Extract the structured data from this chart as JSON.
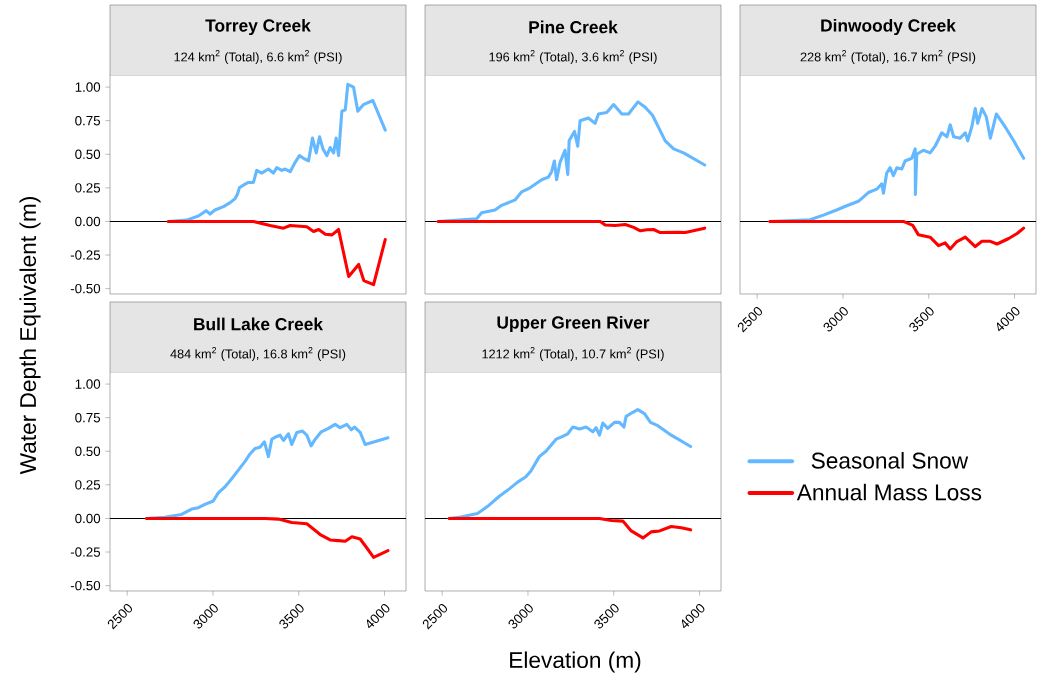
{
  "chart_data": [
    {
      "type": "line",
      "title": "Torrey Creek",
      "subtitle": "124 km$^{2}$ (Total), 6.6 km$^{2}$ (PSI)",
      "ylabel": "Water Depth Equivalent (m)",
      "xlim": [
        2400,
        4125
      ],
      "ylim": [
        -0.54,
        1.09
      ],
      "tick_labels": "y",
      "yticks": [
        {
          "value": -0.5,
          "label": "-0.50"
        },
        {
          "value": -0.25,
          "label": "-0.25"
        },
        {
          "value": 0,
          "label": "0.00"
        },
        {
          "value": 0.25,
          "label": "0.25"
        },
        {
          "value": 0.5,
          "label": "0.50"
        },
        {
          "value": 0.75,
          "label": "0.75"
        },
        {
          "value": 1,
          "label": "1.00"
        }
      ],
      "ref_lines": [
        {
          "axis": "y",
          "value": 0,
          "color": "#000000"
        }
      ],
      "series": [
        {
          "color": "#63b8ff",
          "x": [
            2740,
            2847,
            2915,
            2960,
            2983,
            3012,
            3061,
            3100,
            3129,
            3142,
            3154,
            3177,
            3206,
            3236,
            3255,
            3284,
            3323,
            3352,
            3372,
            3401,
            3420,
            3450,
            3479,
            3504,
            3528,
            3557,
            3580,
            3602,
            3621,
            3641,
            3664,
            3683,
            3703,
            3718,
            3732,
            3751,
            3771,
            3786,
            3819,
            3844,
            3877,
            3932,
            4004
          ],
          "values": [
            0.0,
            0.01,
            0.04,
            0.08,
            0.055,
            0.085,
            0.11,
            0.14,
            0.17,
            0.2,
            0.25,
            0.27,
            0.29,
            0.29,
            0.38,
            0.36,
            0.39,
            0.36,
            0.4,
            0.38,
            0.39,
            0.37,
            0.44,
            0.49,
            0.47,
            0.45,
            0.62,
            0.51,
            0.63,
            0.54,
            0.49,
            0.55,
            0.51,
            0.62,
            0.49,
            0.82,
            0.83,
            1.02,
            1.0,
            0.82,
            0.87,
            0.9,
            0.68
          ]
        },
        {
          "color": "#ff0000",
          "x": [
            2740,
            3236,
            3333,
            3411,
            3450,
            3547,
            3586,
            3616,
            3655,
            3694,
            3732,
            3791,
            3849,
            3879,
            3936,
            4004
          ],
          "values": [
            0,
            0,
            -0.03,
            -0.05,
            -0.03,
            -0.04,
            -0.075,
            -0.06,
            -0.095,
            -0.1,
            -0.06,
            -0.41,
            -0.32,
            -0.44,
            -0.47,
            -0.135
          ]
        }
      ]
    },
    {
      "type": "line",
      "title": "Pine Creek",
      "subtitle": "196 km$^{2}$ (Total), 3.6 km$^{2}$ (PSI)",
      "xlim": [
        2400,
        4125
      ],
      "ylim": [
        -0.54,
        1.09
      ],
      "tick_labels": false,
      "ref_lines": [
        {
          "axis": "y",
          "value": 0,
          "color": "#000000"
        }
      ],
      "series": [
        {
          "color": "#63b8ff",
          "x": [
            2477,
            2701,
            2730,
            2808,
            2847,
            2925,
            2963,
            3012,
            3080,
            3119,
            3138,
            3154,
            3167,
            3187,
            3216,
            3232,
            3240,
            3271,
            3290,
            3304,
            3352,
            3391,
            3411,
            3459,
            3499,
            3547,
            3586,
            3641,
            3683,
            3726,
            3800,
            3849,
            3907,
            4030
          ],
          "values": [
            0,
            0.02,
            0.065,
            0.085,
            0.12,
            0.16,
            0.22,
            0.25,
            0.31,
            0.33,
            0.37,
            0.45,
            0.31,
            0.44,
            0.53,
            0.35,
            0.6,
            0.67,
            0.56,
            0.75,
            0.77,
            0.73,
            0.8,
            0.81,
            0.87,
            0.8,
            0.8,
            0.89,
            0.85,
            0.79,
            0.6,
            0.54,
            0.51,
            0.42
          ]
        },
        {
          "color": "#ff0000",
          "x": [
            2477,
            3421,
            3450,
            3508,
            3567,
            3616,
            3655,
            3694,
            3732,
            3771,
            3878,
            3917,
            4030
          ],
          "values": [
            0,
            0,
            -0.026,
            -0.03,
            -0.023,
            -0.044,
            -0.07,
            -0.062,
            -0.06,
            -0.083,
            -0.08,
            -0.083,
            -0.05
          ]
        }
      ]
    },
    {
      "type": "line",
      "title": "Dinwoody Creek",
      "subtitle": "228 km$^{2}$ (Total), 16.7 km$^{2}$ (PSI)",
      "xlim": [
        2400,
        4125
      ],
      "ylim": [
        -0.54,
        1.09
      ],
      "tick_labels": "x",
      "xticks": [
        2500,
        3000,
        3500,
        4000
      ],
      "ref_lines": [
        {
          "axis": "y",
          "value": 0,
          "color": "#000000"
        }
      ],
      "series": [
        {
          "color": "#63b8ff",
          "x": [
            2574,
            2808,
            2886,
            2963,
            3022,
            3090,
            3148,
            3197,
            3226,
            3236,
            3255,
            3275,
            3294,
            3314,
            3343,
            3362,
            3401,
            3421,
            3422,
            3430,
            3469,
            3508,
            3537,
            3576,
            3606,
            3625,
            3645,
            3683,
            3713,
            3727,
            3752,
            3771,
            3785,
            3810,
            3835,
            3859,
            3894,
            3952,
            3995,
            4053
          ],
          "values": [
            0,
            0.013,
            0.047,
            0.085,
            0.117,
            0.15,
            0.215,
            0.24,
            0.28,
            0.21,
            0.36,
            0.4,
            0.34,
            0.4,
            0.39,
            0.45,
            0.47,
            0.54,
            0.2,
            0.5,
            0.53,
            0.51,
            0.56,
            0.66,
            0.63,
            0.72,
            0.63,
            0.62,
            0.66,
            0.6,
            0.71,
            0.84,
            0.73,
            0.84,
            0.78,
            0.62,
            0.8,
            0.69,
            0.6,
            0.47
          ]
        },
        {
          "color": "#ff0000",
          "x": [
            2574,
            3352,
            3407,
            3440,
            3508,
            3557,
            3596,
            3625,
            3664,
            3713,
            3771,
            3810,
            3859,
            3898,
            3966,
            4015,
            4053
          ],
          "values": [
            0,
            0,
            -0.03,
            -0.1,
            -0.117,
            -0.18,
            -0.16,
            -0.205,
            -0.15,
            -0.117,
            -0.187,
            -0.148,
            -0.148,
            -0.168,
            -0.127,
            -0.09,
            -0.05
          ]
        }
      ]
    },
    {
      "type": "line",
      "title": "Bull Lake Creek",
      "subtitle": "484 km$^{2}$ (Total), 16.8 km$^{2}$ (PSI)",
      "xlim": [
        2400,
        4125
      ],
      "ylim": [
        -0.54,
        1.09
      ],
      "xticks": [
        2500,
        3000,
        3500,
        4000
      ],
      "yticks": [
        {
          "value": -0.5,
          "label": "-0.50"
        },
        {
          "value": -0.25,
          "label": "-0.25"
        },
        {
          "value": 0,
          "label": "0.00"
        },
        {
          "value": 0.25,
          "label": "0.25"
        },
        {
          "value": 0.5,
          "label": "0.50"
        },
        {
          "value": 0.75,
          "label": "0.75"
        },
        {
          "value": 1,
          "label": "1.00"
        }
      ],
      "ref_lines": [
        {
          "axis": "y",
          "value": 0,
          "color": "#000000"
        }
      ],
      "series": [
        {
          "color": "#63b8ff",
          "x": [
            2613,
            2720,
            2817,
            2876,
            2915,
            2953,
            3002,
            3031,
            3070,
            3109,
            3148,
            3187,
            3216,
            3245,
            3274,
            3300,
            3323,
            3343,
            3372,
            3391,
            3411,
            3440,
            3459,
            3489,
            3522,
            3547,
            3572,
            3596,
            3631,
            3673,
            3712,
            3741,
            3780,
            3806,
            3825,
            3858,
            3887,
            4020
          ],
          "values": [
            0,
            0.008,
            0.03,
            0.07,
            0.08,
            0.105,
            0.13,
            0.19,
            0.235,
            0.295,
            0.36,
            0.425,
            0.48,
            0.52,
            0.53,
            0.57,
            0.46,
            0.59,
            0.61,
            0.62,
            0.58,
            0.63,
            0.55,
            0.64,
            0.65,
            0.62,
            0.54,
            0.59,
            0.645,
            0.67,
            0.7,
            0.675,
            0.7,
            0.66,
            0.68,
            0.64,
            0.55,
            0.6
          ]
        },
        {
          "color": "#ff0000",
          "x": [
            2613,
            3304,
            3382,
            3459,
            3547,
            3625,
            3683,
            3732,
            3771,
            3810,
            3858,
            3897,
            3936,
            4020
          ],
          "values": [
            0,
            0,
            -0.005,
            -0.03,
            -0.04,
            -0.12,
            -0.16,
            -0.165,
            -0.17,
            -0.137,
            -0.153,
            -0.22,
            -0.29,
            -0.24
          ]
        }
      ]
    },
    {
      "type": "line",
      "title": "Upper Green River",
      "subtitle": "1212 km$^{2}$ (Total), 10.7 km$^{2}$ (PSI)",
      "xlabel": "Elevation (m)",
      "xlim": [
        2400,
        4125
      ],
      "ylim": [
        -0.54,
        1.09
      ],
      "tick_labels": "x",
      "legend": "right",
      "xticks": [
        2500,
        3000,
        3500,
        4000
      ],
      "ref_lines": [
        {
          "axis": "y",
          "value": 0,
          "color": "#000000"
        }
      ],
      "series": [
        {
          "name": "Seasonal Snow",
          "color": "#63b8ff",
          "x": [
            2541,
            2609,
            2706,
            2765,
            2833,
            2891,
            2940,
            2988,
            3018,
            3066,
            3105,
            3164,
            3193,
            3232,
            3261,
            3300,
            3339,
            3378,
            3397,
            3417,
            3436,
            3465,
            3504,
            3533,
            3559,
            3572,
            3611,
            3640,
            3679,
            3714,
            3757,
            3835,
            3948
          ],
          "values": [
            0,
            0.01,
            0.036,
            0.09,
            0.165,
            0.22,
            0.27,
            0.31,
            0.355,
            0.46,
            0.5,
            0.59,
            0.605,
            0.63,
            0.68,
            0.665,
            0.68,
            0.645,
            0.675,
            0.62,
            0.71,
            0.67,
            0.715,
            0.715,
            0.68,
            0.76,
            0.79,
            0.81,
            0.78,
            0.715,
            0.69,
            0.62,
            0.535
          ]
        },
        {
          "name": "Annual Mass Loss",
          "color": "#ff0000",
          "x": [
            2541,
            3417,
            3485,
            3553,
            3602,
            3670,
            3718,
            3767,
            3835,
            3893,
            3948
          ],
          "values": [
            0,
            0,
            -0.016,
            -0.02,
            -0.093,
            -0.145,
            -0.1,
            -0.093,
            -0.06,
            -0.07,
            -0.085
          ]
        }
      ]
    }
  ]
}
